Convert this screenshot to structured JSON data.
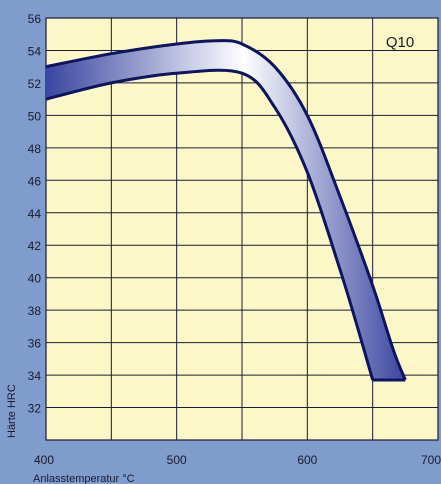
{
  "colors": {
    "page_background": "#7f9ccc",
    "plot_background": "#fbf7c6",
    "grid": "#1a1a3a",
    "band_outline": "#0d1560",
    "band_fill_light": "#ffffff",
    "band_fill_dark": "#3a46a0"
  },
  "chart_data": {
    "type": "area",
    "title": "",
    "annotation": "Q10",
    "xlabel": "Anlasstemperatur °C",
    "ylabel": "Härte HRC",
    "xlim": [
      400,
      700
    ],
    "ylim": [
      30,
      56
    ],
    "x_ticks": [
      400,
      500,
      600,
      700
    ],
    "y_ticks": [
      32,
      34,
      36,
      38,
      40,
      42,
      44,
      46,
      48,
      50,
      52,
      54,
      56
    ],
    "grid": true,
    "legend": "none",
    "series": [
      {
        "role": "upper_bound",
        "points": [
          [
            400,
            53.0
          ],
          [
            450,
            53.8
          ],
          [
            500,
            54.4
          ],
          [
            530,
            54.6
          ],
          [
            550,
            54.4
          ],
          [
            575,
            53.0
          ],
          [
            600,
            50.0
          ],
          [
            625,
            45.0
          ],
          [
            650,
            39.5
          ],
          [
            666,
            35.5
          ],
          [
            675,
            33.7
          ]
        ]
      },
      {
        "role": "lower_bound",
        "points": [
          [
            400,
            51.0
          ],
          [
            450,
            52.0
          ],
          [
            500,
            52.6
          ],
          [
            550,
            52.6
          ],
          [
            575,
            50.5
          ],
          [
            600,
            46.5
          ],
          [
            625,
            40.5
          ],
          [
            640,
            36.5
          ],
          [
            650,
            33.7
          ]
        ]
      }
    ]
  }
}
